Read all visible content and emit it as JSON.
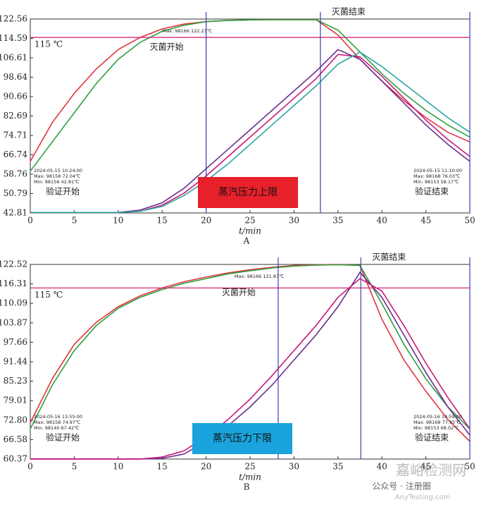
{
  "chart_data": [
    {
      "type": "line",
      "panel_label": "A",
      "x_label": "t/min",
      "x": [
        0,
        2.5,
        5,
        7.5,
        10,
        12.5,
        15,
        17.5,
        20,
        22.5,
        25,
        27.5,
        30,
        32.5,
        35,
        37.5,
        40,
        42.5,
        45,
        47.5,
        50
      ],
      "series": [
        {
          "color": "#e0343c",
          "values": [
            64,
            80,
            92,
            102,
            110,
            115,
            118.5,
            120.5,
            121.5,
            122,
            122.2,
            122.3,
            122.3,
            122.3,
            116,
            106,
            97,
            89,
            82,
            76,
            72
          ]
        },
        {
          "color": "#2e9e3e",
          "values": [
            60,
            72,
            84,
            96,
            106,
            113,
            117.5,
            120,
            121.5,
            122,
            122.2,
            122.3,
            122.3,
            122.3,
            118,
            109,
            100,
            92,
            85,
            79,
            74
          ]
        },
        {
          "color": "#6a2d8c",
          "values": [
            43,
            43,
            43,
            43,
            43,
            44,
            47,
            53,
            61,
            69,
            77,
            85,
            93,
            101,
            110,
            106,
            97,
            88,
            79,
            71,
            64
          ]
        },
        {
          "color": "#c8197a",
          "values": [
            43,
            43,
            43,
            43,
            43,
            43.5,
            46,
            51,
            58,
            66,
            74,
            82,
            90,
            98,
            108,
            107,
            99,
            90,
            81,
            73,
            66
          ]
        },
        {
          "color": "#2aa6a0",
          "values": [
            43,
            43,
            43,
            43,
            43,
            43.5,
            45.5,
            50,
            56,
            63,
            71,
            79,
            87,
            95,
            104,
            109,
            103,
            96,
            89,
            82,
            76
          ]
        }
      ],
      "xlim": [
        0,
        50
      ],
      "xticks": [
        0,
        5,
        10,
        15,
        20,
        25,
        30,
        35,
        40,
        45,
        50
      ],
      "ylim": [
        42.81,
        122.56
      ],
      "yticks": [
        42.81,
        50.79,
        58.76,
        66.74,
        74.71,
        82.69,
        90.66,
        98.64,
        106.61,
        114.59,
        122.56
      ],
      "hline": {
        "value": 115,
        "label": "115 ℃"
      },
      "vlines": [
        20,
        33,
        50
      ],
      "notes": {
        "sterilize_start": "灭菌开始",
        "sterilize_end": "灭菌结束",
        "start": "验证开始",
        "end": "验证结束",
        "condition": "蒸汽压力上限"
      },
      "condition_color": "#e8202a",
      "readouts": {
        "start": [
          "2024-05-15 10:24:00",
          "Max: 98158 72.04℃",
          "Min: 98156 42.81℃"
        ],
        "end": [
          "2024-05-15 11:10:00",
          "Max: 98168 76.03℃",
          "Min: 98153 58.17℃"
        ],
        "peak": [
          "Max: 98166 122.23℃"
        ]
      }
    },
    {
      "type": "line",
      "panel_label": "B",
      "x_label": "t/min",
      "x": [
        0,
        2.5,
        5,
        7.5,
        10,
        12.5,
        15,
        17.5,
        20,
        22.5,
        25,
        27.5,
        30,
        32.5,
        35,
        37.5,
        40,
        42.5,
        45,
        47.5,
        50
      ],
      "series": [
        {
          "color": "#e0343c",
          "values": [
            72,
            86,
            97,
            104,
            109,
            112.5,
            115,
            117,
            118.5,
            119.8,
            120.8,
            121.6,
            122.2,
            122.4,
            122.5,
            122.2,
            105,
            92,
            82,
            73,
            66
          ]
        },
        {
          "color": "#2e9e3e",
          "values": [
            70,
            84,
            95,
            103,
            108.5,
            112,
            114.5,
            116.5,
            118,
            119.5,
            120.5,
            121.4,
            122,
            122.3,
            122.4,
            122.2,
            110,
            97,
            86,
            77,
            70
          ]
        },
        {
          "color": "#6a2d8c",
          "values": [
            60.4,
            60.4,
            60.4,
            60.4,
            60.4,
            60.4,
            60.6,
            62,
            66,
            71,
            77,
            84,
            92,
            100,
            109,
            120,
            112,
            100,
            88,
            77,
            68
          ]
        },
        {
          "color": "#c8197a",
          "values": [
            60.4,
            60.4,
            60.4,
            60.4,
            60.4,
            60.4,
            61,
            63,
            67.5,
            73,
            79.5,
            87,
            95,
            103,
            112,
            118,
            114,
            103,
            91,
            80,
            70
          ]
        }
      ],
      "xlim": [
        0,
        50
      ],
      "xticks": [
        0,
        5,
        10,
        15,
        20,
        25,
        30,
        35,
        40,
        45,
        50
      ],
      "ylim": [
        60.37,
        122.52
      ],
      "yticks": [
        60.37,
        66.58,
        {
          "value": 72.8,
          "label": "72.80"
        },
        79.01,
        85.23,
        91.44,
        97.66,
        103.87,
        110.09,
        116.31,
        122.52
      ],
      "hline": {
        "value": 115,
        "label": "115 ℃"
      },
      "vlines": [
        28.2,
        37.6,
        50
      ],
      "notes": {
        "sterilize_start": "灭菌开始",
        "sterilize_end": "灭菌结束",
        "start": "验证开始",
        "end": "验证结束",
        "condition": "蒸汽压力下限"
      },
      "condition_color": "#1aa3dc",
      "readouts": {
        "start": [
          "2024-05-16 13:55:00",
          "Max: 98158 74.97℃",
          "Min: 98140 67.42℃"
        ],
        "end": [
          "2024-05-16 14:59:00",
          "Max: 98168 77.95℃",
          "Min: 98153 68.02℃"
        ],
        "peak": [
          "Max: 98166 121.87℃"
        ]
      }
    }
  ],
  "watermark": {
    "site": "嘉峪检测网",
    "account": "公众号 · 注册圈",
    "url": "AnyTesting.com"
  }
}
